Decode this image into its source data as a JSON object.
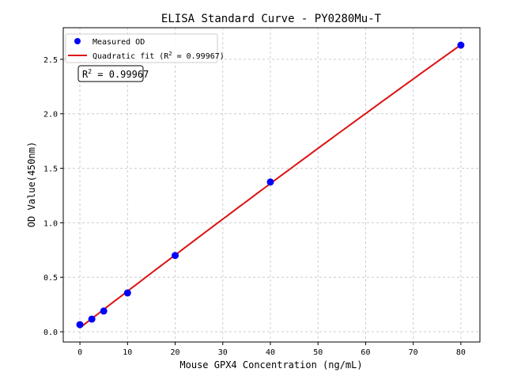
{
  "chart_data": {
    "type": "scatter",
    "title": "ELISA Standard Curve - PY0280Mu-T",
    "xlabel": "Mouse GPX4 Concentration (ng/mL)",
    "ylabel": "OD Value(450nm)",
    "xlim": [
      -3.5,
      84
    ],
    "ylim": [
      -0.094,
      2.79
    ],
    "xticks": [
      0,
      10,
      20,
      30,
      40,
      50,
      60,
      70,
      80
    ],
    "yticks": [
      0.0,
      0.5,
      1.0,
      1.5,
      2.0,
      2.5
    ],
    "ytick_labels": [
      "0.0",
      "0.5",
      "1.0",
      "1.5",
      "2.0",
      "2.5"
    ],
    "grid": true,
    "legend_position": "top-left",
    "series": [
      {
        "name": "Measured OD",
        "kind": "points",
        "color": "#0000ff",
        "x": [
          0,
          2.5,
          5,
          10,
          20,
          40,
          80
        ],
        "y": [
          0.065,
          0.116,
          0.19,
          0.356,
          0.7,
          1.374,
          2.63
        ]
      },
      {
        "name": "Quadratic fit (R² = 0.99967)",
        "kind": "fit-line",
        "color": "#dd1111"
      }
    ],
    "legend_labels": {
      "points": "Measured OD",
      "fit_prefix": "Quadratic fit (R",
      "fit_suffix": " = 0.99967)",
      "sup": "2"
    },
    "annotation": {
      "prefix": "R",
      "sup": "2",
      "suffix": " = 0.99967"
    }
  }
}
